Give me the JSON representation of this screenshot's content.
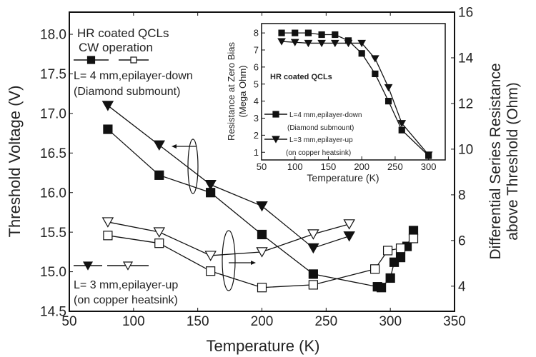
{
  "chart_data": [
    {
      "type": "line",
      "xlabel": "Temperature (K)",
      "ylabel": "Threshold Voltage (V)",
      "y2label": [
        "Differential Series Resistance",
        "above Threshold (Ohm)"
      ],
      "xlim": [
        50,
        350
      ],
      "ylim": [
        14.5,
        18.28
      ],
      "y2lim": [
        2.9,
        16
      ],
      "xticks": [
        50,
        100,
        150,
        200,
        250,
        300,
        350
      ],
      "yticks": [
        "14.5",
        "15.0",
        "15.5",
        "16.0",
        "16.5",
        "17.0",
        "17.5",
        "18.0"
      ],
      "y2ticks": [
        4,
        6,
        8,
        10,
        12,
        14,
        16
      ],
      "annotations": {
        "title1": "HR coated QCLs",
        "title2": "CW operation",
        "legend_4mm_1": "L= 4 mm,epilayer-down",
        "legend_4mm_2": "(Diamond submount)",
        "legend_3mm_1": "L= 3 mm,epilayer-up",
        "legend_3mm_2": "(on copper heatsink)"
      },
      "series": [
        {
          "axis": "left",
          "marker": "filled-square",
          "x": [
            80,
            120,
            160,
            200,
            240,
            290,
            293,
            300,
            303,
            308,
            313,
            318
          ],
          "y": [
            16.8,
            16.22,
            16.0,
            15.47,
            14.97,
            14.81,
            14.8,
            14.92,
            15.12,
            15.18,
            15.32,
            15.52
          ]
        },
        {
          "axis": "left",
          "marker": "filled-triangle",
          "x": [
            80,
            120,
            160,
            200,
            240,
            268
          ],
          "y": [
            17.1,
            16.6,
            16.1,
            15.83,
            15.3,
            15.45
          ]
        },
        {
          "axis": "right",
          "marker": "open-square",
          "x": [
            80,
            120,
            160,
            200,
            240,
            288,
            298,
            308,
            318
          ],
          "y": [
            6.22,
            5.88,
            4.66,
            3.94,
            4.06,
            4.75,
            5.56,
            5.66,
            6.09
          ]
        },
        {
          "axis": "right",
          "marker": "open-triangle",
          "x": [
            80,
            120,
            160,
            200,
            240,
            268
          ],
          "y": [
            6.81,
            6.37,
            5.34,
            5.5,
            6.28,
            6.72
          ]
        }
      ]
    },
    {
      "type": "line",
      "title": "HR coated QCLs",
      "xlabel": "Temperature (K)",
      "ylabel": [
        "Resistance at Zero Bias",
        "(Mega Ohm)"
      ],
      "xlim": [
        50,
        325
      ],
      "ylim": [
        0.55,
        8.55
      ],
      "xticks": [
        50,
        100,
        150,
        200,
        250,
        300
      ],
      "yticks": [
        1,
        2,
        3,
        4,
        5,
        6,
        7,
        8
      ],
      "legend": [
        "L=4 mm,epilayer-down",
        "(Diamond submount)",
        "L=3 mm,epilayer-up",
        "(on copper heatsink)"
      ],
      "series": [
        {
          "marker": "filled-square",
          "x": [
            80,
            100,
            120,
            140,
            160,
            180,
            200,
            220,
            240,
            260,
            300
          ],
          "y": [
            8.0,
            8.0,
            8.0,
            7.9,
            7.9,
            7.55,
            6.8,
            5.6,
            4.0,
            2.3,
            0.8
          ]
        },
        {
          "marker": "filled-triangle",
          "x": [
            80,
            100,
            120,
            140,
            160,
            180,
            200,
            220,
            240,
            260,
            300
          ],
          "y": [
            7.5,
            7.45,
            7.4,
            7.4,
            7.4,
            7.4,
            7.4,
            6.5,
            4.8,
            2.7,
            0.85
          ]
        }
      ]
    }
  ]
}
